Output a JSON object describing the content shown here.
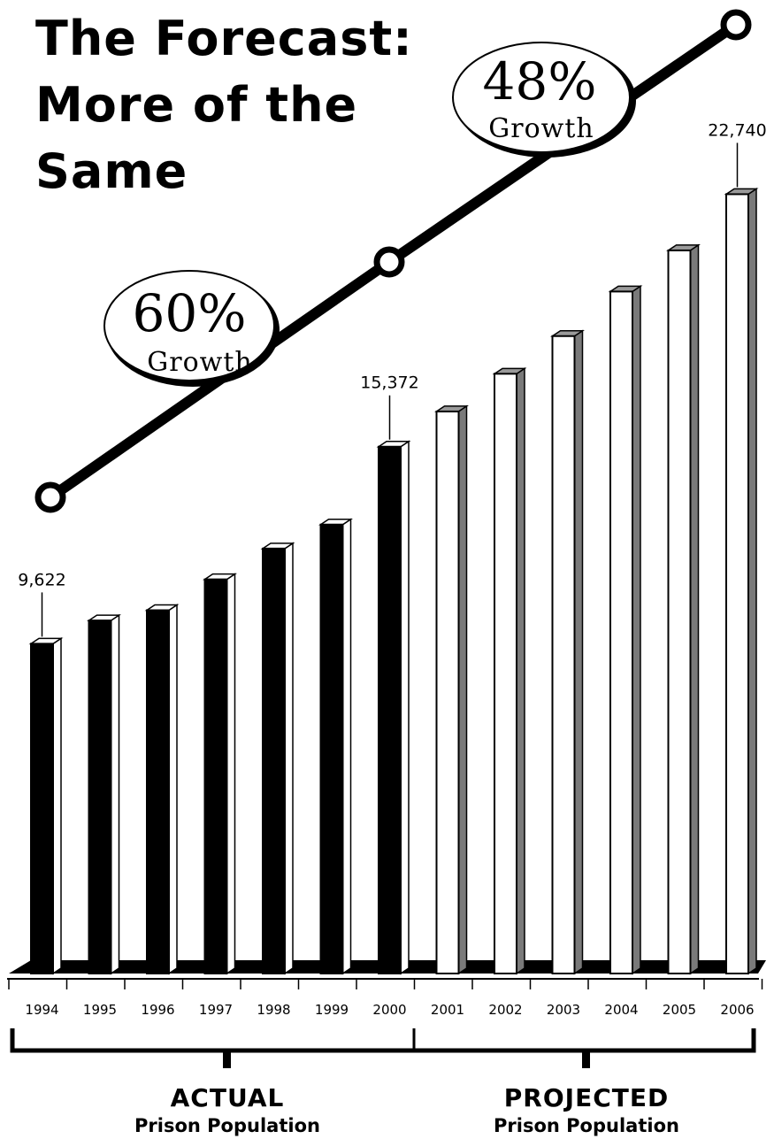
{
  "title_lines": [
    "The Forecast:",
    "More of the",
    "Same"
  ],
  "chart_data": {
    "type": "bar",
    "title": "The Forecast: More of the Same",
    "categories": [
      "1994",
      "1995",
      "1996",
      "1997",
      "1998",
      "1999",
      "2000",
      "2001",
      "2002",
      "2003",
      "2004",
      "2005",
      "2006"
    ],
    "series": [
      {
        "name": "ACTUAL",
        "values": [
          9622,
          10300,
          10600,
          11500,
          12400,
          13100,
          15372,
          null,
          null,
          null,
          null,
          null,
          null
        ],
        "color": "#000000"
      },
      {
        "name": "PROJECTED",
        "values": [
          null,
          null,
          null,
          null,
          null,
          null,
          null,
          16400,
          17500,
          18600,
          19900,
          21100,
          22740
        ],
        "color": "#ffffff"
      }
    ],
    "ylim": [
      0,
      23500
    ],
    "data_labels": [
      {
        "category": "1994",
        "text": "9,622"
      },
      {
        "category": "2000",
        "text": "15,372"
      },
      {
        "category": "2006",
        "text": "22,740"
      }
    ],
    "growth_annotations": [
      {
        "pct": "60%",
        "word": "Growth",
        "from": "1994",
        "to": "2000"
      },
      {
        "pct": "48%",
        "word": "Growth",
        "from": "2000",
        "to": "2006"
      }
    ],
    "groups": [
      {
        "title": "ACTUAL",
        "subtitle": "Prison Population",
        "from": "1994",
        "to": "2000"
      },
      {
        "title": "PROJECTED",
        "subtitle": "Prison Population",
        "from": "2001",
        "to": "2006"
      }
    ],
    "grid": false,
    "legend": "none"
  }
}
